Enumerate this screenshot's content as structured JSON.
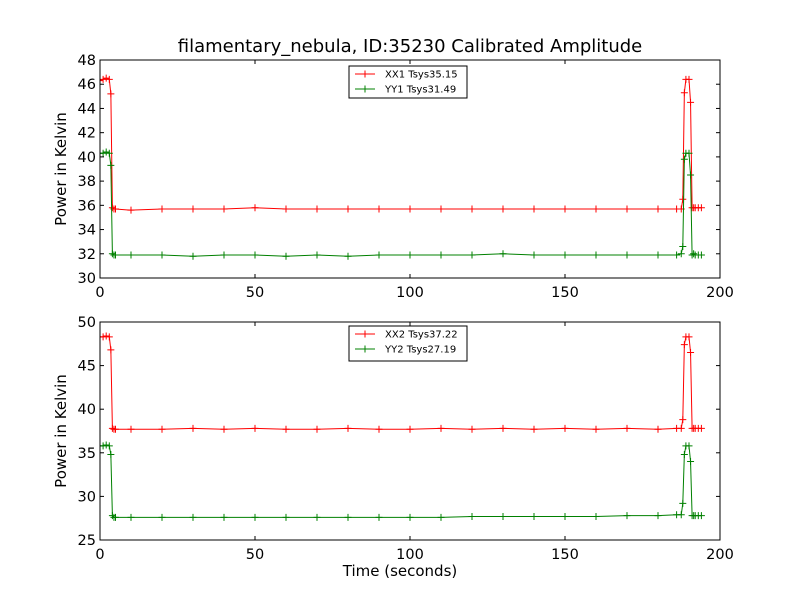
{
  "title": "filamentary_nebula, ID:35230 Calibrated Amplitude",
  "chart_data": [
    {
      "type": "line",
      "ylabel": "Power in Kelvin",
      "xlabel": "",
      "xlim": [
        0,
        200
      ],
      "ylim": [
        30,
        48
      ],
      "xticks": [
        0,
        50,
        100,
        150,
        200
      ],
      "yticks": [
        30,
        32,
        34,
        36,
        38,
        40,
        42,
        44,
        46,
        48
      ],
      "grid": false,
      "legend_position": "top-center",
      "series": [
        {
          "name": "XX1 Tsys35.15",
          "color": "#ff0000",
          "marker": "+",
          "x": [
            0,
            1,
            2,
            3,
            3.5,
            4,
            4.5,
            5,
            10,
            20,
            30,
            40,
            50,
            60,
            70,
            80,
            90,
            100,
            110,
            120,
            130,
            140,
            150,
            160,
            170,
            180,
            186,
            187.5,
            188,
            188.5,
            189,
            190,
            190.5,
            191,
            191.5,
            192,
            193,
            194
          ],
          "y": [
            46.3,
            46.4,
            46.5,
            46.4,
            45.2,
            35.8,
            35.7,
            35.7,
            35.6,
            35.7,
            35.7,
            35.7,
            35.8,
            35.7,
            35.7,
            35.7,
            35.7,
            35.7,
            35.7,
            35.7,
            35.7,
            35.7,
            35.7,
            35.7,
            35.7,
            35.7,
            35.7,
            35.7,
            36.5,
            45.3,
            46.4,
            46.4,
            44.5,
            35.8,
            35.8,
            35.8,
            35.8,
            35.8
          ]
        },
        {
          "name": "YY1 Tsys31.49",
          "color": "#008000",
          "marker": "+",
          "x": [
            0,
            1,
            2,
            3,
            3.5,
            4,
            4.5,
            5,
            10,
            20,
            30,
            40,
            50,
            60,
            70,
            80,
            90,
            100,
            110,
            120,
            130,
            140,
            150,
            160,
            170,
            180,
            186,
            187.5,
            188,
            188.5,
            189,
            190,
            190.5,
            191,
            191.5,
            192,
            193,
            194
          ],
          "y": [
            40.3,
            40.3,
            40.4,
            40.3,
            39.3,
            32.0,
            31.9,
            31.9,
            31.9,
            31.9,
            31.8,
            31.9,
            31.9,
            31.8,
            31.9,
            31.8,
            31.9,
            31.9,
            31.9,
            31.9,
            32.0,
            31.9,
            31.9,
            31.9,
            31.9,
            31.9,
            31.9,
            32.0,
            32.6,
            39.8,
            40.3,
            40.3,
            38.5,
            31.9,
            32.0,
            31.9,
            31.9,
            31.9
          ]
        }
      ]
    },
    {
      "type": "line",
      "ylabel": "Power in Kelvin",
      "xlabel": "Time (seconds)",
      "xlim": [
        0,
        200
      ],
      "ylim": [
        25,
        50
      ],
      "xticks": [
        0,
        50,
        100,
        150,
        200
      ],
      "yticks": [
        25,
        30,
        35,
        40,
        45,
        50
      ],
      "grid": false,
      "legend_position": "top-center",
      "series": [
        {
          "name": "XX2 Tsys37.22",
          "color": "#ff0000",
          "marker": "+",
          "x": [
            0,
            1,
            2,
            3,
            3.5,
            4,
            4.5,
            5,
            10,
            20,
            30,
            40,
            50,
            60,
            70,
            80,
            90,
            100,
            110,
            120,
            130,
            140,
            150,
            160,
            170,
            180,
            186,
            187.5,
            188,
            188.5,
            189,
            190,
            190.5,
            191,
            191.5,
            192,
            193,
            194
          ],
          "y": [
            48.3,
            48.3,
            48.4,
            48.3,
            46.8,
            37.8,
            37.7,
            37.7,
            37.7,
            37.7,
            37.8,
            37.7,
            37.8,
            37.7,
            37.7,
            37.8,
            37.7,
            37.7,
            37.8,
            37.7,
            37.8,
            37.7,
            37.8,
            37.7,
            37.8,
            37.7,
            37.8,
            37.8,
            38.8,
            47.4,
            48.3,
            48.3,
            46.5,
            37.8,
            37.8,
            37.8,
            37.8,
            37.8
          ]
        },
        {
          "name": "YY2 Tsys27.19",
          "color": "#008000",
          "marker": "+",
          "x": [
            0,
            1,
            2,
            3,
            3.5,
            4,
            4.5,
            5,
            10,
            20,
            30,
            40,
            50,
            60,
            70,
            80,
            90,
            100,
            110,
            120,
            130,
            140,
            150,
            160,
            170,
            180,
            186,
            187.5,
            188,
            188.5,
            189,
            190,
            190.5,
            191,
            191.5,
            192,
            193,
            194
          ],
          "y": [
            35.8,
            35.8,
            35.9,
            35.8,
            34.8,
            27.8,
            27.6,
            27.6,
            27.6,
            27.6,
            27.6,
            27.6,
            27.6,
            27.6,
            27.6,
            27.6,
            27.6,
            27.6,
            27.6,
            27.7,
            27.7,
            27.7,
            27.7,
            27.7,
            27.8,
            27.8,
            27.9,
            27.9,
            29.2,
            34.8,
            35.8,
            35.8,
            34.0,
            27.8,
            27.8,
            27.8,
            27.8,
            27.8
          ]
        }
      ]
    }
  ]
}
